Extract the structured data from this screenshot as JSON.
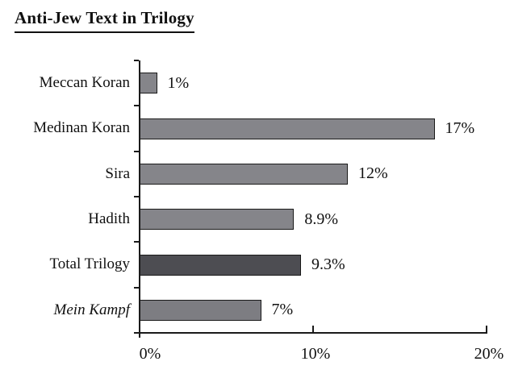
{
  "chart_data": {
    "type": "bar",
    "orientation": "horizontal",
    "title": "Anti-Jew Text in Trilogy",
    "categories": [
      "Meccan Koran",
      "Medinan Koran",
      "Sira",
      "Hadith",
      "Total Trilogy",
      "Mein Kampf"
    ],
    "values": [
      1,
      17,
      12,
      8.9,
      9.3,
      7
    ],
    "value_labels": [
      "1%",
      "17%",
      "12%",
      "8.9%",
      "9.3%",
      "7%"
    ],
    "italic_flags": [
      false,
      false,
      false,
      false,
      false,
      true
    ],
    "bar_colors": [
      "#85858A",
      "#85858A",
      "#85858A",
      "#85858A",
      "#4D4D52",
      "#7D7D82"
    ],
    "bar_border_color": "#1A1A1A",
    "axis_color": "#1A1A1A",
    "xlabel": "",
    "ylabel": "",
    "xlim": [
      0,
      20
    ],
    "x_tick_values": [
      0,
      10,
      20
    ],
    "x_tick_labels": [
      "0%",
      "10%",
      "20%"
    ],
    "grid": false,
    "legend": false
  }
}
